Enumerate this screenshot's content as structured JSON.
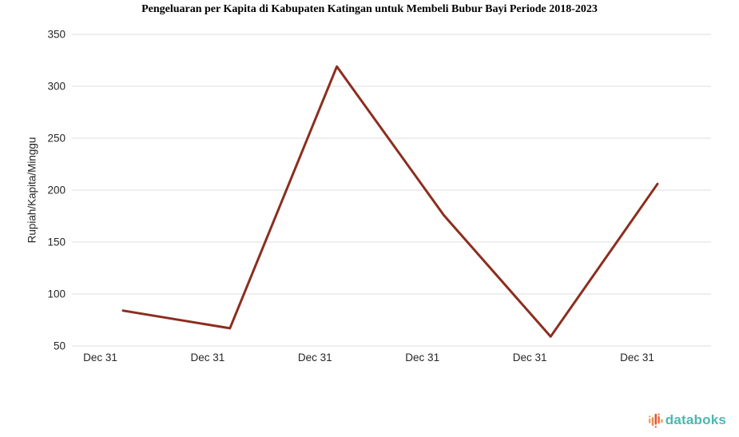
{
  "title": "Pengeluaran per Kapita di Kabupaten Katingan untuk Membeli Bubur Bayi Periode 2018-2023",
  "chart_data": {
    "type": "line",
    "title": "Pengeluaran per Kapita di Kabupaten Katingan untuk Membeli Bubur Bayi Periode 2018-2023",
    "xlabel": "",
    "ylabel": "Rupiah/Kapita/Minggu",
    "categories": [
      "Dec 31",
      "Dec 31",
      "Dec 31",
      "Dec 31",
      "Dec 31",
      "Dec 31"
    ],
    "values": [
      84,
      67,
      319,
      176,
      59,
      206
    ],
    "ylim": [
      50,
      350
    ],
    "yticks": [
      350,
      300,
      250,
      200,
      150,
      100,
      50
    ],
    "grid": true,
    "legend": false,
    "line_color": "#8b2e1e",
    "gridline_color": "#dcdcdc"
  },
  "footer": {
    "brand": "databoks",
    "brand_color": "#4bb8ae",
    "icon": "databoks-bars-icon",
    "icon_colors": [
      "#f5a15c",
      "#f0894b",
      "#e8502f",
      "#ef6a3a",
      "#f5a15c"
    ]
  }
}
